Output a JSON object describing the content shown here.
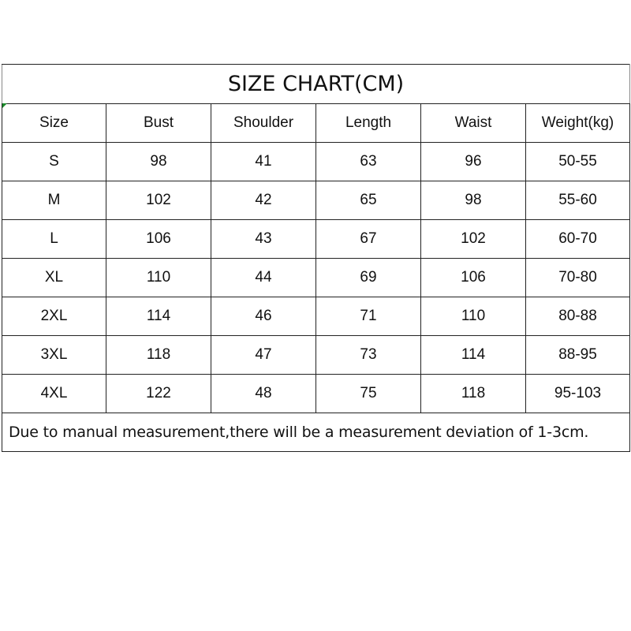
{
  "title": "SIZE CHART(CM)",
  "headers": [
    "Size",
    "Bust",
    "Shoulder",
    "Length",
    "Waist",
    "Weight(kg)"
  ],
  "rows": [
    [
      "S",
      "98",
      "41",
      "63",
      "96",
      "50-55"
    ],
    [
      "M",
      "102",
      "42",
      "65",
      "98",
      "55-60"
    ],
    [
      "L",
      "106",
      "43",
      "67",
      "102",
      "60-70"
    ],
    [
      "XL",
      "110",
      "44",
      "69",
      "106",
      "70-80"
    ],
    [
      "2XL",
      "114",
      "46",
      "71",
      "110",
      "80-88"
    ],
    [
      "3XL",
      "118",
      "47",
      "73",
      "114",
      "88-95"
    ],
    [
      "4XL",
      "122",
      "48",
      "75",
      "118",
      "95-103"
    ]
  ],
  "note": "Due to manual measurement,there will be a measurement deviation of 1-3cm."
}
